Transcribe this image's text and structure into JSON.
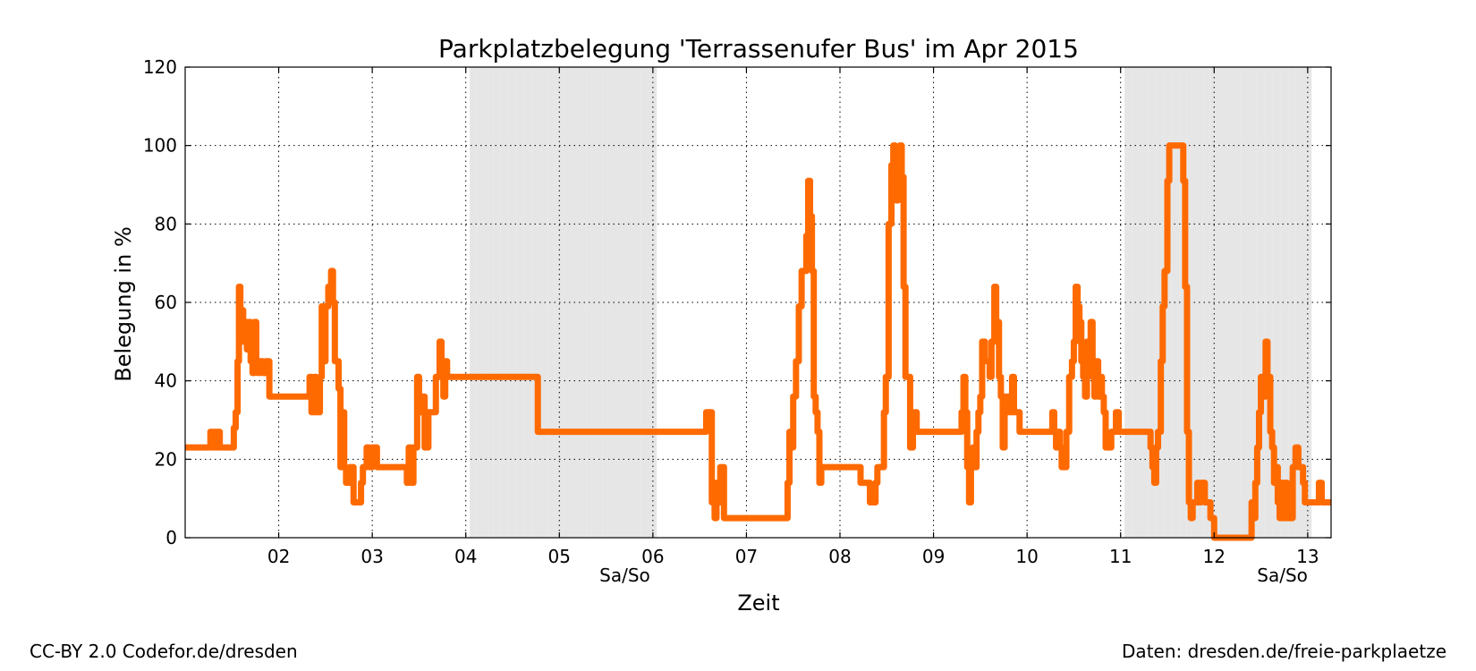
{
  "footer": {
    "license": "CC-BY 2.0 Codefor.de/dresden",
    "source": "Daten: dresden.de/freie-parkplaetze"
  },
  "chart_data": {
    "type": "line",
    "title": "Parkplatzbelegung 'Terrassenufer Bus' im Apr 2015",
    "xlabel": "Zeit",
    "ylabel": "Belegung in %",
    "xlim": [
      1.0,
      13.25
    ],
    "ylim": [
      0,
      120
    ],
    "x_unit": "day of April 2015",
    "x_ticks": [
      2,
      3,
      4,
      5,
      6,
      7,
      8,
      9,
      10,
      11,
      12,
      13
    ],
    "x_tick_labels": [
      "02",
      "03",
      "04",
      "05",
      "06",
      "07",
      "08",
      "09",
      "10",
      "11",
      "12",
      "13"
    ],
    "y_ticks": [
      0,
      20,
      40,
      60,
      80,
      100,
      120
    ],
    "grid": true,
    "grid_style": "dotted",
    "weekend_shading": [
      [
        4,
        6
      ],
      [
        11,
        13
      ]
    ],
    "weekend_labels": [
      {
        "x": 5.7,
        "text": "Sa/So"
      },
      {
        "x": 12.73,
        "text": "Sa/So"
      }
    ],
    "series": [
      {
        "color": "#ff6a00",
        "points": [
          [
            1.0,
            23
          ],
          [
            1.25,
            23
          ],
          [
            1.27,
            27
          ],
          [
            1.29,
            23
          ],
          [
            1.31,
            27
          ],
          [
            1.33,
            23
          ],
          [
            1.35,
            27
          ],
          [
            1.37,
            23
          ],
          [
            1.5,
            23
          ],
          [
            1.52,
            28
          ],
          [
            1.54,
            32
          ],
          [
            1.56,
            45
          ],
          [
            1.575,
            64
          ],
          [
            1.59,
            52
          ],
          [
            1.6,
            58
          ],
          [
            1.62,
            50
          ],
          [
            1.64,
            55
          ],
          [
            1.66,
            48
          ],
          [
            1.68,
            55
          ],
          [
            1.7,
            45
          ],
          [
            1.72,
            42
          ],
          [
            1.74,
            55
          ],
          [
            1.76,
            45
          ],
          [
            1.78,
            42
          ],
          [
            1.8,
            45
          ],
          [
            1.83,
            42
          ],
          [
            1.86,
            45
          ],
          [
            1.9,
            36
          ],
          [
            2.3,
            36
          ],
          [
            2.33,
            41
          ],
          [
            2.35,
            32
          ],
          [
            2.38,
            41
          ],
          [
            2.4,
            32
          ],
          [
            2.44,
            41
          ],
          [
            2.46,
            59
          ],
          [
            2.48,
            45
          ],
          [
            2.5,
            59
          ],
          [
            2.53,
            64
          ],
          [
            2.56,
            68
          ],
          [
            2.58,
            60
          ],
          [
            2.6,
            45
          ],
          [
            2.64,
            38
          ],
          [
            2.66,
            18
          ],
          [
            2.68,
            32
          ],
          [
            2.7,
            18
          ],
          [
            2.72,
            14
          ],
          [
            2.76,
            18
          ],
          [
            2.8,
            9
          ],
          [
            2.86,
            9
          ],
          [
            2.88,
            14
          ],
          [
            2.9,
            18
          ],
          [
            2.94,
            23
          ],
          [
            2.97,
            18
          ],
          [
            3.0,
            23
          ],
          [
            3.05,
            18
          ],
          [
            3.35,
            18
          ],
          [
            3.37,
            14
          ],
          [
            3.39,
            23
          ],
          [
            3.42,
            14
          ],
          [
            3.44,
            23
          ],
          [
            3.46,
            23
          ],
          [
            3.48,
            41
          ],
          [
            3.5,
            32
          ],
          [
            3.52,
            36
          ],
          [
            3.56,
            23
          ],
          [
            3.6,
            32
          ],
          [
            3.65,
            32
          ],
          [
            3.68,
            41
          ],
          [
            3.72,
            50
          ],
          [
            3.74,
            42
          ],
          [
            3.76,
            36
          ],
          [
            3.78,
            45
          ],
          [
            3.8,
            41
          ],
          [
            4.0,
            41
          ],
          [
            4.5,
            41
          ],
          [
            4.75,
            41
          ],
          [
            4.77,
            27
          ],
          [
            5.0,
            27
          ],
          [
            6.0,
            27
          ],
          [
            6.55,
            27
          ],
          [
            6.57,
            32
          ],
          [
            6.6,
            32
          ],
          [
            6.63,
            9
          ],
          [
            6.66,
            5
          ],
          [
            6.68,
            14
          ],
          [
            6.7,
            9
          ],
          [
            6.72,
            18
          ],
          [
            6.74,
            18
          ],
          [
            6.76,
            5
          ],
          [
            7.0,
            5
          ],
          [
            7.4,
            5
          ],
          [
            7.44,
            14
          ],
          [
            7.46,
            27
          ],
          [
            7.48,
            23
          ],
          [
            7.5,
            36
          ],
          [
            7.53,
            45
          ],
          [
            7.56,
            59
          ],
          [
            7.59,
            68
          ],
          [
            7.62,
            68
          ],
          [
            7.64,
            77
          ],
          [
            7.66,
            91
          ],
          [
            7.68,
            82
          ],
          [
            7.7,
            68
          ],
          [
            7.72,
            36
          ],
          [
            7.74,
            32
          ],
          [
            7.76,
            27
          ],
          [
            7.78,
            14
          ],
          [
            7.8,
            18
          ],
          [
            8.0,
            18
          ],
          [
            8.2,
            18
          ],
          [
            8.22,
            14
          ],
          [
            8.3,
            14
          ],
          [
            8.32,
            9
          ],
          [
            8.36,
            9
          ],
          [
            8.38,
            14
          ],
          [
            8.4,
            18
          ],
          [
            8.45,
            18
          ],
          [
            8.47,
            32
          ],
          [
            8.49,
            41
          ],
          [
            8.5,
            41
          ],
          [
            8.52,
            80
          ],
          [
            8.55,
            95
          ],
          [
            8.57,
            100
          ],
          [
            8.59,
            94
          ],
          [
            8.6,
            86
          ],
          [
            8.62,
            98
          ],
          [
            8.64,
            100
          ],
          [
            8.66,
            92
          ],
          [
            8.68,
            64
          ],
          [
            8.7,
            41
          ],
          [
            8.72,
            41
          ],
          [
            8.75,
            23
          ],
          [
            8.78,
            27
          ],
          [
            8.8,
            32
          ],
          [
            8.82,
            27
          ],
          [
            9.0,
            27
          ],
          [
            9.28,
            27
          ],
          [
            9.3,
            32
          ],
          [
            9.32,
            41
          ],
          [
            9.34,
            32
          ],
          [
            9.36,
            18
          ],
          [
            9.38,
            9
          ],
          [
            9.4,
            18
          ],
          [
            9.42,
            23
          ],
          [
            9.44,
            18
          ],
          [
            9.46,
            27
          ],
          [
            9.48,
            32
          ],
          [
            9.5,
            36
          ],
          [
            9.52,
            50
          ],
          [
            9.55,
            45
          ],
          [
            9.58,
            45
          ],
          [
            9.6,
            41
          ],
          [
            9.62,
            50
          ],
          [
            9.65,
            64
          ],
          [
            9.67,
            55
          ],
          [
            9.7,
            41
          ],
          [
            9.72,
            36
          ],
          [
            9.74,
            23
          ],
          [
            9.76,
            36
          ],
          [
            9.78,
            32
          ],
          [
            9.8,
            36
          ],
          [
            9.82,
            32
          ],
          [
            9.84,
            41
          ],
          [
            9.86,
            32
          ],
          [
            9.9,
            32
          ],
          [
            9.92,
            27
          ],
          [
            10.0,
            27
          ],
          [
            10.25,
            27
          ],
          [
            10.27,
            32
          ],
          [
            10.29,
            27
          ],
          [
            10.31,
            23
          ],
          [
            10.33,
            27
          ],
          [
            10.35,
            23
          ],
          [
            10.37,
            18
          ],
          [
            10.4,
            18
          ],
          [
            10.42,
            27
          ],
          [
            10.45,
            41
          ],
          [
            10.48,
            45
          ],
          [
            10.5,
            50
          ],
          [
            10.52,
            64
          ],
          [
            10.54,
            59
          ],
          [
            10.56,
            55
          ],
          [
            10.58,
            45
          ],
          [
            10.6,
            41
          ],
          [
            10.62,
            36
          ],
          [
            10.64,
            50
          ],
          [
            10.66,
            45
          ],
          [
            10.68,
            55
          ],
          [
            10.7,
            41
          ],
          [
            10.72,
            36
          ],
          [
            10.74,
            45
          ],
          [
            10.76,
            36
          ],
          [
            10.78,
            41
          ],
          [
            10.8,
            36
          ],
          [
            10.82,
            32
          ],
          [
            10.84,
            23
          ],
          [
            10.88,
            23
          ],
          [
            10.9,
            27
          ],
          [
            10.95,
            32
          ],
          [
            10.98,
            27
          ],
          [
            11.0,
            27
          ],
          [
            11.3,
            27
          ],
          [
            11.32,
            23
          ],
          [
            11.34,
            18
          ],
          [
            11.36,
            14
          ],
          [
            11.38,
            23
          ],
          [
            11.4,
            27
          ],
          [
            11.43,
            45
          ],
          [
            11.45,
            59
          ],
          [
            11.47,
            68
          ],
          [
            11.5,
            91
          ],
          [
            11.52,
            100
          ],
          [
            11.65,
            100
          ],
          [
            11.67,
            91
          ],
          [
            11.69,
            64
          ],
          [
            11.71,
            27
          ],
          [
            11.73,
            9
          ],
          [
            11.75,
            5
          ],
          [
            11.77,
            9
          ],
          [
            11.8,
            9
          ],
          [
            11.82,
            14
          ],
          [
            11.84,
            9
          ],
          [
            11.86,
            14
          ],
          [
            11.9,
            9
          ],
          [
            11.96,
            5
          ],
          [
            12.0,
            0
          ],
          [
            12.38,
            0
          ],
          [
            12.4,
            9
          ],
          [
            12.42,
            5
          ],
          [
            12.44,
            14
          ],
          [
            12.46,
            23
          ],
          [
            12.48,
            32
          ],
          [
            12.5,
            41
          ],
          [
            12.52,
            36
          ],
          [
            12.55,
            50
          ],
          [
            12.57,
            41
          ],
          [
            12.6,
            27
          ],
          [
            12.62,
            23
          ],
          [
            12.64,
            14
          ],
          [
            12.66,
            18
          ],
          [
            12.68,
            9
          ],
          [
            12.7,
            5
          ],
          [
            12.72,
            14
          ],
          [
            12.74,
            5
          ],
          [
            12.76,
            14
          ],
          [
            12.78,
            5
          ],
          [
            12.82,
            5
          ],
          [
            12.84,
            18
          ],
          [
            12.87,
            23
          ],
          [
            12.9,
            18
          ],
          [
            12.93,
            18
          ],
          [
            12.95,
            14
          ],
          [
            12.97,
            9
          ],
          [
            13.1,
            9
          ],
          [
            13.12,
            14
          ],
          [
            13.15,
            9
          ],
          [
            13.25,
            9
          ]
        ]
      }
    ]
  }
}
